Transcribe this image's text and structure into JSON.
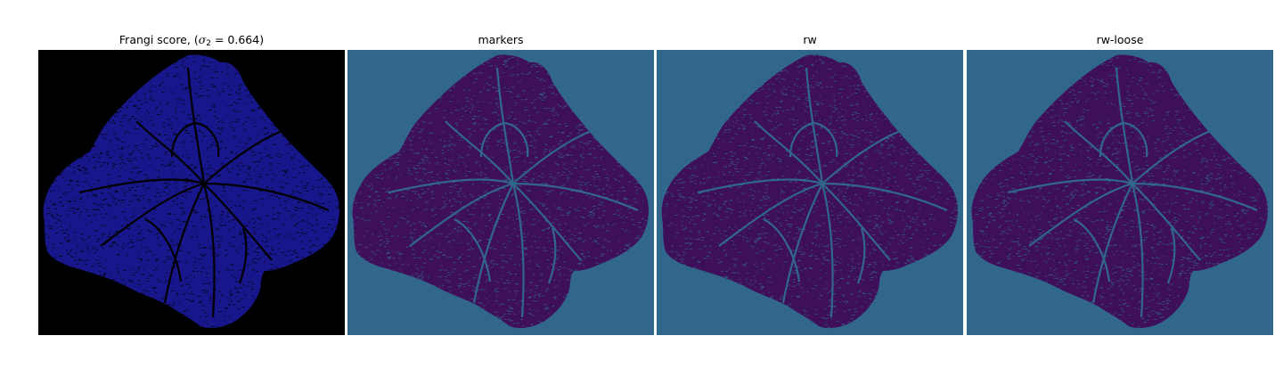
{
  "panels": [
    {
      "id": "frangi",
      "title_prefix": "Frangi score, (",
      "title_symbol": "σ",
      "title_subscript": "2",
      "title_suffix": " = 0.664)",
      "background_color": "#000000",
      "leaf_color": "#17168a",
      "vein_color": "#000000"
    },
    {
      "id": "markers",
      "title": "markers",
      "background_color": "#31678a",
      "leaf_color": "#3e0f5a",
      "vein_color": "#31678a"
    },
    {
      "id": "rw",
      "title": "rw",
      "background_color": "#31678a",
      "leaf_color": "#3e0f5a",
      "vein_color": "#31678a"
    },
    {
      "id": "rw-loose",
      "title": "rw-loose",
      "background_color": "#31678a",
      "leaf_color": "#3e0f5a",
      "vein_color": "#31678a"
    }
  ]
}
